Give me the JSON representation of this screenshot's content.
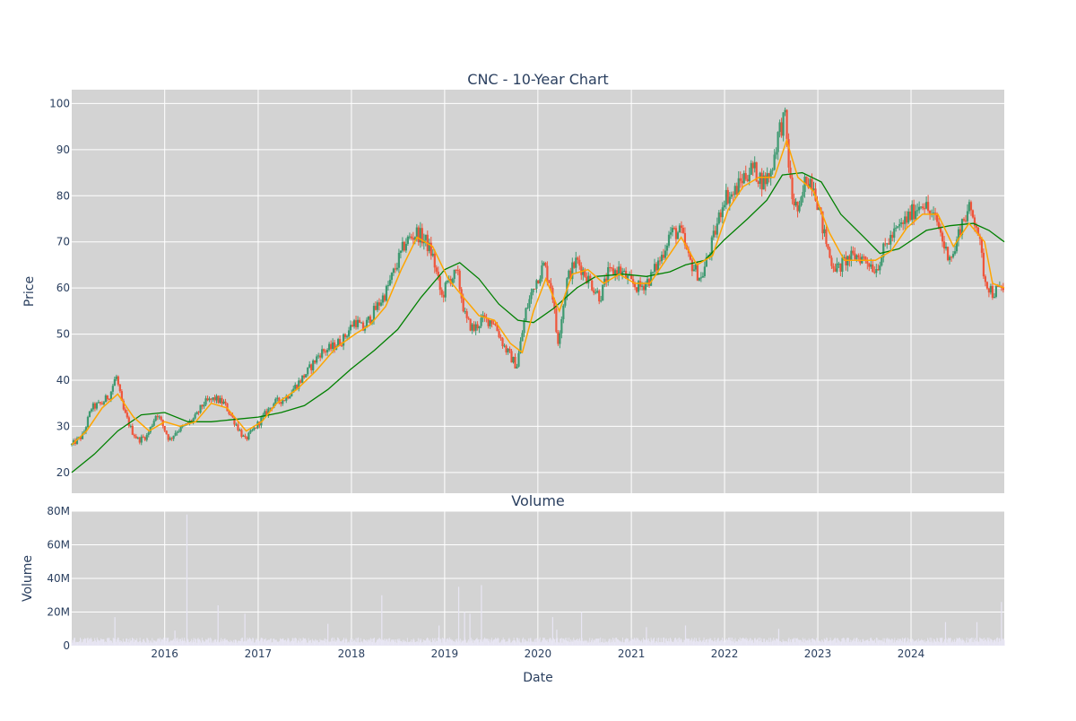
{
  "chart_data": [
    {
      "type": "candlestick",
      "title": "CNC - 10-Year Chart",
      "xlabel": "",
      "ylabel": "Price",
      "ylim": [
        15.5,
        103
      ],
      "xlim": [
        "2015-01-02",
        "2024-12-31"
      ],
      "yticks": [
        20,
        30,
        40,
        50,
        60,
        70,
        80,
        90,
        100
      ],
      "x_ticks": [
        "2016",
        "2017",
        "2018",
        "2019",
        "2020",
        "2021",
        "2022",
        "2023",
        "2024"
      ],
      "grid": true,
      "background": "#d3d3d3",
      "colors": {
        "up": "#3d9970",
        "down": "#ef553b",
        "ma_short": "#ffa500",
        "ma_long": "#008000"
      },
      "price_path": [
        [
          "2015-01-02",
          26
        ],
        [
          "2015-02-15",
          28
        ],
        [
          "2015-03-20",
          34
        ],
        [
          "2015-05-01",
          35
        ],
        [
          "2015-06-01",
          37
        ],
        [
          "2015-06-25",
          41
        ],
        [
          "2015-07-20",
          34
        ],
        [
          "2015-08-25",
          29
        ],
        [
          "2015-09-20",
          27
        ],
        [
          "2015-10-25",
          28
        ],
        [
          "2015-12-01",
          33
        ],
        [
          "2016-01-20",
          27
        ],
        [
          "2016-02-15",
          29
        ],
        [
          "2016-03-20",
          30
        ],
        [
          "2016-05-01",
          32
        ],
        [
          "2016-06-01",
          35
        ],
        [
          "2016-07-15",
          36
        ],
        [
          "2016-08-20",
          35
        ],
        [
          "2016-10-01",
          31
        ],
        [
          "2016-11-10",
          27
        ],
        [
          "2016-12-10",
          29
        ],
        [
          "2017-01-20",
          32
        ],
        [
          "2017-03-01",
          35
        ],
        [
          "2017-04-15",
          36
        ],
        [
          "2017-06-01",
          39
        ],
        [
          "2017-07-15",
          42
        ],
        [
          "2017-09-01",
          46
        ],
        [
          "2017-10-15",
          47
        ],
        [
          "2017-12-01",
          49
        ],
        [
          "2018-01-15",
          53
        ],
        [
          "2018-02-15",
          51
        ],
        [
          "2018-04-01",
          55
        ],
        [
          "2018-05-15",
          59
        ],
        [
          "2018-06-20",
          64
        ],
        [
          "2018-08-01",
          70
        ],
        [
          "2018-09-15",
          72
        ],
        [
          "2018-10-20",
          70
        ],
        [
          "2018-11-15",
          67
        ],
        [
          "2018-12-20",
          58
        ],
        [
          "2019-01-20",
          62
        ],
        [
          "2019-02-20",
          63
        ],
        [
          "2019-03-25",
          53
        ],
        [
          "2019-04-25",
          51
        ],
        [
          "2019-05-25",
          53
        ],
        [
          "2019-07-10",
          53
        ],
        [
          "2019-08-25",
          47
        ],
        [
          "2019-10-10",
          43
        ],
        [
          "2019-11-15",
          55
        ],
        [
          "2019-12-20",
          61
        ],
        [
          "2020-01-25",
          65
        ],
        [
          "2020-02-25",
          60
        ],
        [
          "2020-03-18",
          48
        ],
        [
          "2020-04-25",
          62
        ],
        [
          "2020-06-01",
          66
        ],
        [
          "2020-07-15",
          62
        ],
        [
          "2020-09-01",
          58
        ],
        [
          "2020-10-01",
          63
        ],
        [
          "2020-11-15",
          64
        ],
        [
          "2021-01-01",
          61
        ],
        [
          "2021-02-01",
          60
        ],
        [
          "2021-03-15",
          62
        ],
        [
          "2021-05-01",
          67
        ],
        [
          "2021-06-01",
          72
        ],
        [
          "2021-07-15",
          72
        ],
        [
          "2021-08-15",
          66
        ],
        [
          "2021-10-01",
          62
        ],
        [
          "2021-11-15",
          70
        ],
        [
          "2022-01-01",
          80
        ],
        [
          "2022-02-01",
          80
        ],
        [
          "2022-03-15",
          84
        ],
        [
          "2022-04-20",
          86
        ],
        [
          "2022-06-01",
          83
        ],
        [
          "2022-07-01",
          85
        ],
        [
          "2022-08-01",
          94
        ],
        [
          "2022-08-25",
          97
        ],
        [
          "2022-09-20",
          80
        ],
        [
          "2022-10-20",
          76
        ],
        [
          "2022-11-15",
          84
        ],
        [
          "2022-12-15",
          83
        ],
        [
          "2023-01-20",
          73
        ],
        [
          "2023-02-20",
          66
        ],
        [
          "2023-03-20",
          64
        ],
        [
          "2023-04-20",
          66
        ],
        [
          "2023-06-01",
          67
        ],
        [
          "2023-07-15",
          66
        ],
        [
          "2023-08-15",
          64
        ],
        [
          "2023-10-01",
          70
        ],
        [
          "2023-11-15",
          73
        ],
        [
          "2024-01-01",
          76
        ],
        [
          "2024-02-15",
          79
        ],
        [
          "2024-03-15",
          76
        ],
        [
          "2024-04-15",
          74
        ],
        [
          "2024-05-15",
          68
        ],
        [
          "2024-06-15",
          67
        ],
        [
          "2024-07-15",
          74
        ],
        [
          "2024-08-15",
          77
        ],
        [
          "2024-09-15",
          74
        ],
        [
          "2024-10-15",
          62
        ],
        [
          "2024-11-15",
          59
        ],
        [
          "2024-12-31",
          60
        ]
      ],
      "series": [
        {
          "type": "line",
          "values": [
            [
              "2015-01-02",
              20
            ],
            [
              "2015-04-01",
              24
            ],
            [
              "2015-07-01",
              29
            ],
            [
              "2015-10-01",
              32.5
            ],
            [
              "2016-01-01",
              33
            ],
            [
              "2016-04-01",
              31
            ],
            [
              "2016-07-01",
              31
            ],
            [
              "2016-10-01",
              31.5
            ],
            [
              "2017-01-01",
              32
            ],
            [
              "2017-04-01",
              33
            ],
            [
              "2017-07-01",
              34.5
            ],
            [
              "2017-10-01",
              38
            ],
            [
              "2018-01-01",
              42.5
            ],
            [
              "2018-04-01",
              46.5
            ],
            [
              "2018-07-01",
              51
            ],
            [
              "2018-10-01",
              58
            ],
            [
              "2019-01-01",
              64
            ],
            [
              "2019-03-01",
              65.5
            ],
            [
              "2019-05-15",
              62
            ],
            [
              "2019-08-01",
              56.5
            ],
            [
              "2019-10-15",
              53
            ],
            [
              "2019-12-15",
              52.5
            ],
            [
              "2020-03-01",
              55.5
            ],
            [
              "2020-06-01",
              60
            ],
            [
              "2020-08-15",
              62.5
            ],
            [
              "2020-12-01",
              63
            ],
            [
              "2021-03-01",
              62.5
            ],
            [
              "2021-06-01",
              63.5
            ],
            [
              "2021-08-01",
              65
            ],
            [
              "2021-10-15",
              66
            ],
            [
              "2022-01-01",
              70.5
            ],
            [
              "2022-04-01",
              75
            ],
            [
              "2022-06-15",
              79
            ],
            [
              "2022-08-15",
              84.5
            ],
            [
              "2022-11-01",
              85
            ],
            [
              "2023-01-15",
              83
            ],
            [
              "2023-04-01",
              76
            ],
            [
              "2023-07-01",
              71
            ],
            [
              "2023-09-01",
              67.5
            ],
            [
              "2023-11-15",
              68.5
            ],
            [
              "2024-03-01",
              72.5
            ],
            [
              "2024-06-01",
              73.5
            ],
            [
              "2024-09-01",
              74
            ],
            [
              "2024-11-01",
              72.5
            ],
            [
              "2024-12-31",
              70
            ]
          ]
        },
        {
          "type": "line",
          "values": [
            [
              "2015-01-02",
              26
            ],
            [
              "2015-03-01",
              29
            ],
            [
              "2015-05-01",
              34
            ],
            [
              "2015-07-01",
              37
            ],
            [
              "2015-09-01",
              32
            ],
            [
              "2015-11-01",
              29
            ],
            [
              "2016-01-01",
              31
            ],
            [
              "2016-03-01",
              30
            ],
            [
              "2016-05-01",
              31
            ],
            [
              "2016-07-01",
              35
            ],
            [
              "2016-09-01",
              34
            ],
            [
              "2016-11-15",
              29
            ],
            [
              "2017-01-15",
              31
            ],
            [
              "2017-03-15",
              35
            ],
            [
              "2017-06-01",
              38
            ],
            [
              "2017-08-15",
              42
            ],
            [
              "2017-11-01",
              47
            ],
            [
              "2018-01-15",
              50
            ],
            [
              "2018-03-15",
              52
            ],
            [
              "2018-05-15",
              56
            ],
            [
              "2018-07-15",
              64
            ],
            [
              "2018-09-15",
              71
            ],
            [
              "2018-11-15",
              69
            ],
            [
              "2019-01-15",
              62
            ],
            [
              "2019-03-15",
              58
            ],
            [
              "2019-05-15",
              54
            ],
            [
              "2019-07-15",
              53
            ],
            [
              "2019-09-15",
              48
            ],
            [
              "2019-11-01",
              46
            ],
            [
              "2019-12-15",
              55
            ],
            [
              "2020-02-01",
              62
            ],
            [
              "2020-03-25",
              55
            ],
            [
              "2020-05-15",
              63
            ],
            [
              "2020-07-15",
              64
            ],
            [
              "2020-09-15",
              61
            ],
            [
              "2020-11-15",
              63
            ],
            [
              "2021-01-15",
              61
            ],
            [
              "2021-03-15",
              61
            ],
            [
              "2021-05-15",
              66
            ],
            [
              "2021-07-15",
              71
            ],
            [
              "2021-09-15",
              65
            ],
            [
              "2021-11-15",
              67
            ],
            [
              "2022-01-15",
              77
            ],
            [
              "2022-03-15",
              82
            ],
            [
              "2022-05-15",
              84
            ],
            [
              "2022-07-15",
              84
            ],
            [
              "2022-09-01",
              92
            ],
            [
              "2022-10-15",
              84
            ],
            [
              "2022-12-15",
              81
            ],
            [
              "2023-02-15",
              72
            ],
            [
              "2023-04-15",
              66
            ],
            [
              "2023-06-15",
              66
            ],
            [
              "2023-08-15",
              66
            ],
            [
              "2023-10-15",
              68
            ],
            [
              "2023-12-15",
              73
            ],
            [
              "2024-02-15",
              76
            ],
            [
              "2024-04-15",
              76
            ],
            [
              "2024-06-15",
              69
            ],
            [
              "2024-08-15",
              74
            ],
            [
              "2024-10-15",
              70
            ],
            [
              "2024-11-15",
              61
            ],
            [
              "2024-12-31",
              60
            ]
          ]
        }
      ]
    },
    {
      "type": "bar",
      "title": "Volume",
      "xlabel": "Date",
      "ylabel": "Volume",
      "ylim": [
        0,
        80000000
      ],
      "yticks": [
        0,
        20000000,
        40000000,
        60000000,
        80000000
      ],
      "ytick_labels": [
        "0",
        "20M",
        "40M",
        "60M",
        "80M"
      ],
      "x_ticks": [
        "2016",
        "2017",
        "2018",
        "2019",
        "2020",
        "2021",
        "2022",
        "2023",
        "2024"
      ],
      "grid": true,
      "color": "#e8e6f4",
      "baseline": 3500000,
      "spikes": [
        [
          "2015-06-20",
          17000000
        ],
        [
          "2016-02-10",
          9000000
        ],
        [
          "2016-03-28",
          78000000
        ],
        [
          "2016-07-28",
          24000000
        ],
        [
          "2016-11-10",
          19000000
        ],
        [
          "2017-10-01",
          13000000
        ],
        [
          "2018-04-30",
          30000000
        ],
        [
          "2018-12-10",
          12000000
        ],
        [
          "2019-02-25",
          35000000
        ],
        [
          "2019-03-20",
          20000000
        ],
        [
          "2019-04-10",
          19000000
        ],
        [
          "2019-05-25",
          36000000
        ],
        [
          "2020-02-28",
          17000000
        ],
        [
          "2020-03-15",
          9500000
        ],
        [
          "2020-06-20",
          20000000
        ],
        [
          "2021-03-01",
          11000000
        ],
        [
          "2021-08-01",
          12000000
        ],
        [
          "2022-08-01",
          10000000
        ],
        [
          "2024-05-15",
          14000000
        ],
        [
          "2024-09-15",
          14000000
        ],
        [
          "2024-12-20",
          26000000
        ]
      ]
    }
  ]
}
